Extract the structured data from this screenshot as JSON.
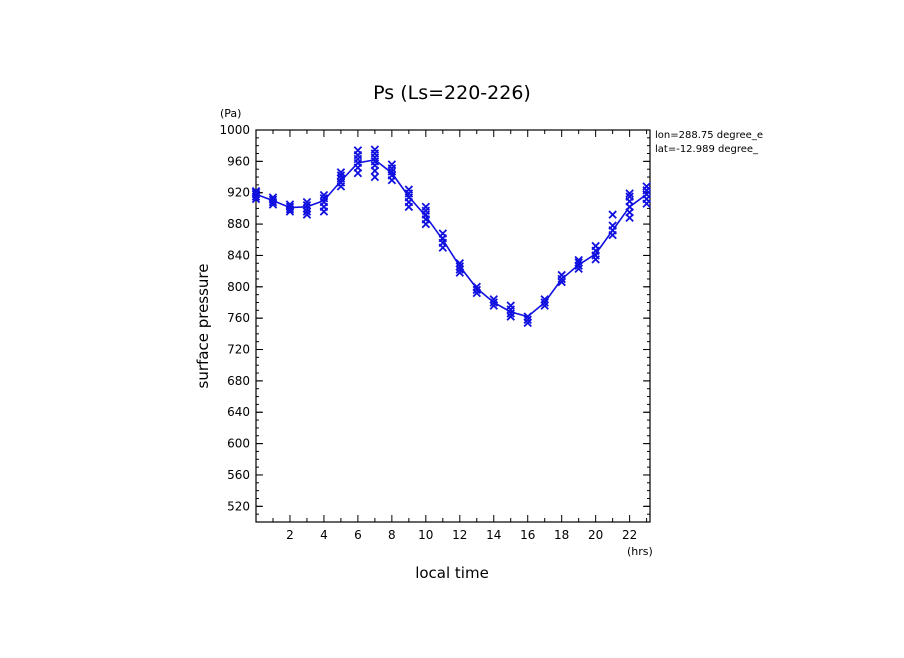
{
  "chart_data": {
    "type": "line",
    "title": "Ps (Ls=220-226)",
    "xlabel": "local time",
    "ylabel": "surface pressure",
    "x_unit": "(hrs)",
    "y_unit": "(Pa)",
    "xlim": [
      0,
      23.2
    ],
    "ylim": [
      500,
      1000
    ],
    "x_ticks": [
      2,
      4,
      6,
      8,
      10,
      12,
      14,
      16,
      18,
      20,
      22
    ],
    "y_ticks": [
      520,
      560,
      600,
      640,
      680,
      720,
      760,
      800,
      840,
      880,
      920,
      960,
      1000
    ],
    "grid": false,
    "annotations": [
      "lon=288.75 degree_e",
      "lat=-12.989 degree_"
    ],
    "color": "#1010e0",
    "mean_line": {
      "x": [
        0,
        1,
        2,
        3,
        4,
        5,
        6,
        7,
        8,
        9,
        10,
        11,
        12,
        13,
        14,
        15,
        16,
        17,
        18,
        19,
        20,
        21,
        22,
        23
      ],
      "y": [
        918,
        910,
        901,
        902,
        910,
        935,
        958,
        962,
        945,
        915,
        890,
        860,
        826,
        798,
        780,
        768,
        762,
        780,
        810,
        828,
        842,
        872,
        902,
        918
      ]
    },
    "samples": [
      {
        "x": 0,
        "y": [
          912,
          915,
          918,
          920,
          922
        ]
      },
      {
        "x": 1,
        "y": [
          905,
          908,
          911,
          914
        ]
      },
      {
        "x": 2,
        "y": [
          896,
          899,
          902,
          905
        ]
      },
      {
        "x": 3,
        "y": [
          892,
          896,
          900,
          904,
          908
        ]
      },
      {
        "x": 4,
        "y": [
          896,
          902,
          908,
          913,
          917
        ]
      },
      {
        "x": 5,
        "y": [
          928,
          933,
          938,
          942,
          946
        ]
      },
      {
        "x": 6,
        "y": [
          945,
          952,
          958,
          963,
          968,
          974
        ]
      },
      {
        "x": 7,
        "y": [
          940,
          948,
          955,
          960,
          965,
          970,
          975
        ]
      },
      {
        "x": 8,
        "y": [
          936,
          942,
          947,
          951,
          956
        ]
      },
      {
        "x": 9,
        "y": [
          902,
          908,
          914,
          919,
          924
        ]
      },
      {
        "x": 10,
        "y": [
          880,
          886,
          892,
          897,
          902
        ]
      },
      {
        "x": 11,
        "y": [
          850,
          856,
          862,
          868
        ]
      },
      {
        "x": 12,
        "y": [
          818,
          822,
          826,
          830
        ]
      },
      {
        "x": 13,
        "y": [
          792,
          796,
          800
        ]
      },
      {
        "x": 14,
        "y": [
          776,
          780,
          784
        ]
      },
      {
        "x": 15,
        "y": [
          762,
          766,
          771,
          776
        ]
      },
      {
        "x": 16,
        "y": [
          754,
          758,
          762
        ]
      },
      {
        "x": 17,
        "y": [
          776,
          780,
          784
        ]
      },
      {
        "x": 18,
        "y": [
          806,
          810,
          815
        ]
      },
      {
        "x": 19,
        "y": [
          823,
          827,
          831,
          834
        ]
      },
      {
        "x": 20,
        "y": [
          835,
          840,
          846,
          852
        ]
      },
      {
        "x": 21,
        "y": [
          866,
          872,
          878,
          892
        ]
      },
      {
        "x": 22,
        "y": [
          888,
          895,
          902,
          909,
          915,
          919
        ]
      },
      {
        "x": 23,
        "y": [
          906,
          912,
          918,
          923,
          928
        ]
      }
    ]
  }
}
